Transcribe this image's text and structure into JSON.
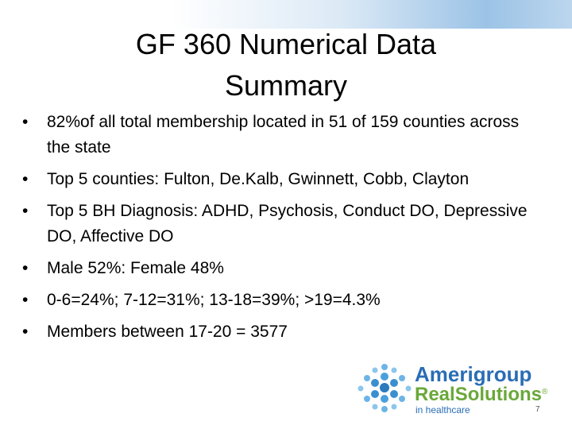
{
  "title": "GF 360 Numerical Data Summary",
  "bullets": [
    "82%of all total membership located in 51 of 159 counties across the state",
    "Top 5 counties:  Fulton, De.Kalb, Gwinnett, Cobb, Clayton",
    "Top 5 BH Diagnosis: ADHD, Psychosis, Conduct DO, Depressive DO, Affective DO",
    "Male 52%:  Female 48%",
    "0-6=24%; 7-12=31%; 13-18=39%; >19=4.3%",
    "Members between 17-20  = 3577"
  ],
  "logo": {
    "brand": "Amerigroup",
    "product": "RealSolutions",
    "mark": "®",
    "tagline": "in healthcare"
  },
  "page_number": "7"
}
